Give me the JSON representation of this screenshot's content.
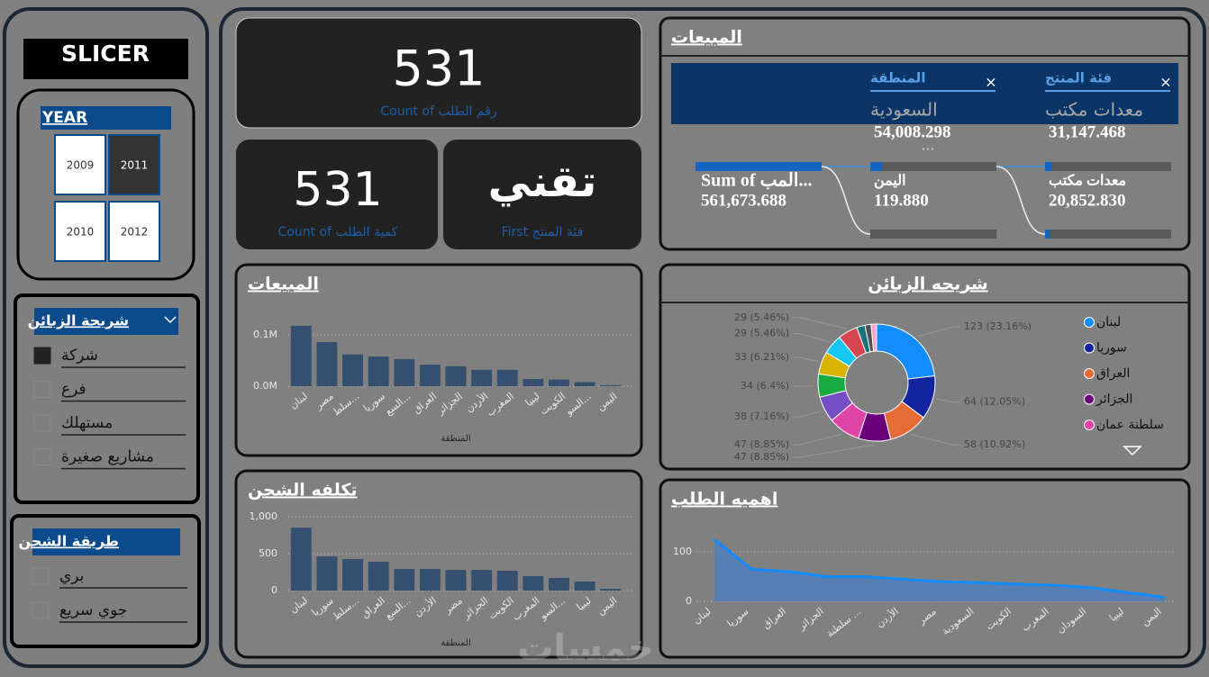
{
  "slicer": {
    "title": "SLICER",
    "year": {
      "title": "YEAR",
      "options": [
        "2009",
        "2011",
        "2010",
        "2012"
      ],
      "selected": 1
    },
    "segment": {
      "title": "شريحة الزبائن",
      "options": [
        "شركة",
        "فرع",
        "مستهلك",
        "مشاريع صغيرة"
      ],
      "checked": [
        0
      ]
    },
    "shipping": {
      "title": "طريقة الشحن",
      "options": [
        "بري",
        "جوي سريع"
      ],
      "checked": []
    }
  },
  "cards": [
    {
      "value": "531",
      "label": "Count of رقم الطلب"
    },
    {
      "value": "531",
      "label": "Count of كمية الطلب"
    },
    {
      "value": "تقني",
      "label": "First فئة المنتج"
    }
  ],
  "tree": {
    "title": "المبيعات",
    "root": {
      "label": "Sum of المب...",
      "value": 561673.688,
      "value_label": "561,673.688"
    },
    "levels": [
      {
        "title": "المنطقة",
        "selected": "السعودية",
        "more": "...",
        "nodes": [
          {
            "label": null,
            "value": 54008.298,
            "value_label": "54,008.298"
          },
          {
            "label": "اليمن",
            "value": 119.88,
            "value_label": "119.880"
          }
        ]
      },
      {
        "title": "فئة المنتج",
        "selected": "معدات مكتب",
        "more": null,
        "nodes": [
          {
            "label": null,
            "value": 31147.468,
            "value_label": "31,147.468"
          },
          {
            "label": "معدات مكتب",
            "value": 20852.83,
            "value_label": "20,852.830"
          }
        ]
      }
    ]
  },
  "chart_data": [
    {
      "type": "bar",
      "title": "المبيعات",
      "x_label": "المنطقة",
      "color": "#34506e",
      "categories": [
        "لبنان",
        "مصر",
        "سلط...",
        "سوريا",
        "السع...",
        "العراق",
        "الجزائر",
        "الأردن",
        "المغرب",
        "ليبيا",
        "الكويت",
        "السو...",
        "اليمن"
      ],
      "values": [
        118000,
        86000,
        62000,
        58000,
        53000,
        42000,
        39000,
        32000,
        32000,
        14000,
        13000,
        8000,
        2000
      ],
      "ylim": [
        0,
        130000
      ],
      "yticks": [
        {
          "value": 0,
          "label": "0.0M"
        },
        {
          "value": 100000,
          "label": "0.1M"
        }
      ],
      "grid": true
    },
    {
      "type": "pie",
      "title": "شريحه الزبائن",
      "categories": [
        "لبنان",
        "سوريا",
        "العراق",
        "الجزائر",
        "سلطنة عمان",
        null,
        null,
        null,
        null,
        null,
        null,
        null,
        null
      ],
      "values": [
        123,
        64,
        58,
        47,
        47,
        38,
        34,
        33,
        29,
        29,
        12,
        9,
        8
      ],
      "value_labels": [
        "123 (23.16%)",
        "64 (12.05%)",
        "58 (10.92%)",
        "47 (8.85%)",
        "47 (8.85%)",
        "38 (7.16%)",
        "34 (6.4%)",
        "33 (6.21%)",
        "29 (5.46%)",
        "29 (5.46%)",
        null,
        null,
        null
      ],
      "colors": [
        "#118dff",
        "#12239e",
        "#e66c37",
        "#6b007b",
        "#e044a7",
        "#744ec2",
        "#1aab40",
        "#d9b300",
        "#15c6f4",
        "#d64550",
        "#197278",
        "#505050",
        "#f5a3d1"
      ],
      "legend": "right"
    },
    {
      "type": "bar",
      "title": "تكلفه الشحن",
      "x_label": "المنطقة",
      "color": "#34506e",
      "categories": [
        "لبنان",
        "سوريا",
        "سلط...",
        "العراق",
        "السع...",
        "الأردن",
        "مصر",
        "الجزائر",
        "الكويت",
        "المغرب",
        "السو...",
        "ليبيا",
        "اليمن"
      ],
      "values": [
        853,
        463,
        427,
        390,
        293,
        293,
        280,
        280,
        268,
        195,
        171,
        122,
        24
      ],
      "ylim": [
        0,
        1050
      ],
      "yticks": [
        0,
        500,
        {
          "value": 1000,
          "label": "1,000"
        }
      ],
      "grid": true
    },
    {
      "type": "area",
      "title": "اهميه الطلب",
      "color": "#118dff",
      "categories": [
        "لبنان",
        "سوريا",
        "العراق",
        "الجزائر",
        "سلطنة ...",
        "الأردن",
        "مصر",
        "السعودية",
        "الكويت",
        "المغرب",
        "السودان",
        "ليبيا",
        "اليمن"
      ],
      "values": [
        125,
        65,
        60,
        50,
        50,
        45,
        40,
        38,
        35,
        33,
        28,
        18,
        8
      ],
      "ylim": [
        0,
        140
      ],
      "yticks": [
        0,
        100
      ],
      "grid": true
    }
  ],
  "watermark": "خمسات"
}
